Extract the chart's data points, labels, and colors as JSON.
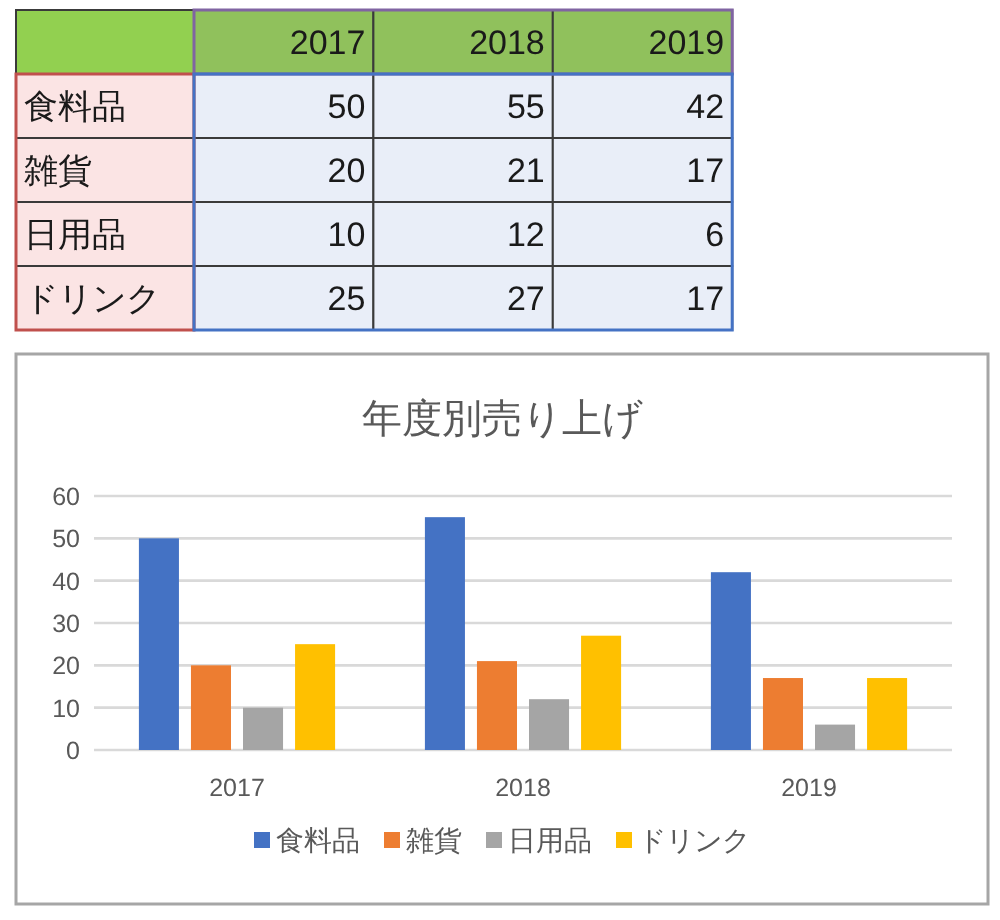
{
  "chart_data": {
    "type": "bar",
    "title": "年度別売り上げ",
    "categories": [
      "2017",
      "2018",
      "2019"
    ],
    "series": [
      {
        "name": "食料品",
        "color": "#4472c4",
        "values": [
          50,
          55,
          42
        ]
      },
      {
        "name": "雑貨",
        "color": "#ed7d31",
        "values": [
          20,
          21,
          17
        ]
      },
      {
        "name": "日用品",
        "color": "#a5a5a5",
        "values": [
          10,
          12,
          6
        ]
      },
      {
        "name": "ドリンク",
        "color": "#ffc000",
        "values": [
          25,
          27,
          17
        ]
      }
    ],
    "ylim": [
      0,
      60
    ],
    "yticks": [
      0,
      10,
      20,
      30,
      40,
      50,
      60
    ],
    "grid": "y",
    "legend": "bottom",
    "data_labels": true
  }
}
